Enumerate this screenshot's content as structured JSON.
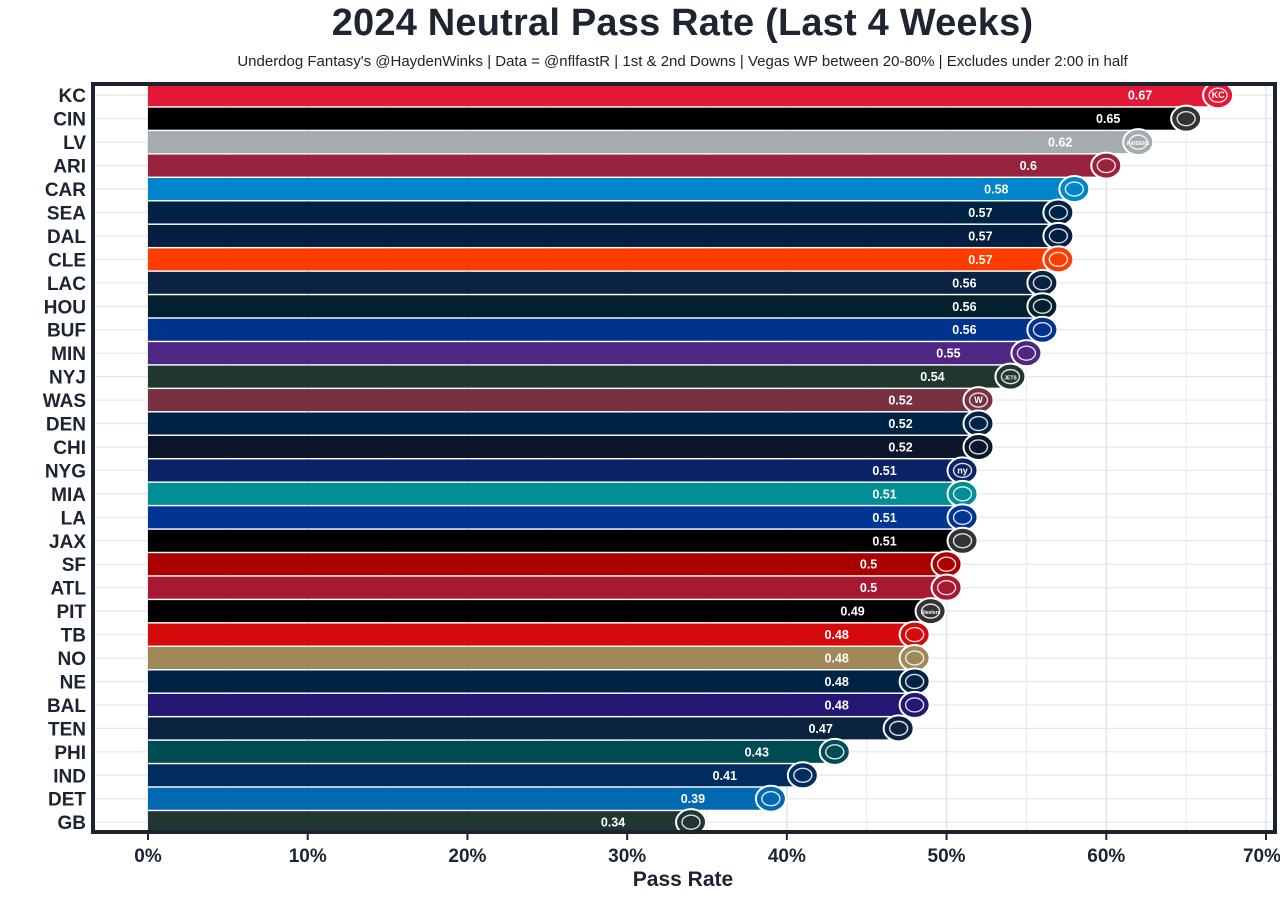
{
  "chart_data": {
    "type": "bar",
    "orientation": "horizontal",
    "title": "2024 Neutral Pass Rate (Last 4 Weeks)",
    "subtitle": "Underdog Fantasy's @HaydenWinks | Data = @nflfastR | 1st & 2nd Downs | Vegas WP between 20-80% | Excludes under 2:00 in half",
    "xlabel": "Pass Rate",
    "ylabel": "",
    "xlim": [
      0,
      0.7
    ],
    "x_ticks": [
      "0%",
      "10%",
      "20%",
      "30%",
      "40%",
      "50%",
      "60%",
      "70%"
    ],
    "grid": true,
    "categories": [
      "KC",
      "CIN",
      "LV",
      "ARI",
      "CAR",
      "SEA",
      "DAL",
      "CLE",
      "LAC",
      "HOU",
      "BUF",
      "MIN",
      "NYJ",
      "WAS",
      "DEN",
      "CHI",
      "NYG",
      "MIA",
      "LA",
      "JAX",
      "SF",
      "ATL",
      "PIT",
      "TB",
      "NO",
      "NE",
      "BAL",
      "TEN",
      "PHI",
      "IND",
      "DET",
      "GB"
    ],
    "values": [
      0.67,
      0.65,
      0.62,
      0.6,
      0.58,
      0.57,
      0.57,
      0.57,
      0.56,
      0.56,
      0.56,
      0.55,
      0.54,
      0.52,
      0.52,
      0.52,
      0.51,
      0.51,
      0.51,
      0.51,
      0.5,
      0.5,
      0.49,
      0.48,
      0.48,
      0.48,
      0.48,
      0.47,
      0.43,
      0.41,
      0.39,
      0.34
    ],
    "data_labels": [
      "0.67",
      "0.65",
      "0.62",
      "0.6",
      "0.58",
      "0.57",
      "0.57",
      "0.57",
      "0.56",
      "0.56",
      "0.56",
      "0.55",
      "0.54",
      "0.52",
      "0.52",
      "0.52",
      "0.51",
      "0.51",
      "0.51",
      "0.51",
      "0.5",
      "0.5",
      "0.49",
      "0.48",
      "0.48",
      "0.48",
      "0.48",
      "0.47",
      "0.43",
      "0.41",
      "0.39",
      "0.34"
    ],
    "bar_colors": [
      "#e31837",
      "#000000",
      "#a5acaf",
      "#97233f",
      "#0085ca",
      "#002244",
      "#041e42",
      "#ff3c00",
      "#0a2342",
      "#03202f",
      "#00338d",
      "#4f2683",
      "#203731",
      "#773141",
      "#002244",
      "#0b162a",
      "#0b2265",
      "#008e97",
      "#003594",
      "#000000",
      "#aa0000",
      "#a71930",
      "#000000",
      "#d50a0a",
      "#9f8958",
      "#002244",
      "#241773",
      "#0c2340",
      "#004c54",
      "#002c5f",
      "#0069b1",
      "#203731"
    ],
    "logos": [
      "kc-logo-icon",
      "cin-logo-icon",
      "lv-logo-icon",
      "ari-logo-icon",
      "car-logo-icon",
      "sea-logo-icon",
      "dal-logo-icon",
      "cle-logo-icon",
      "lac-logo-icon",
      "hou-logo-icon",
      "buf-logo-icon",
      "min-logo-icon",
      "nyj-logo-icon",
      "was-logo-icon",
      "den-logo-icon",
      "chi-logo-icon",
      "nyg-logo-icon",
      "mia-logo-icon",
      "la-logo-icon",
      "jax-logo-icon",
      "sf-logo-icon",
      "atl-logo-icon",
      "pit-logo-icon",
      "tb-logo-icon",
      "no-logo-icon",
      "ne-logo-icon",
      "bal-logo-icon",
      "ten-logo-icon",
      "phi-logo-icon",
      "ind-logo-icon",
      "det-logo-icon",
      "gb-logo-icon"
    ],
    "logo_texts": {
      "KC": "KC",
      "LV": "RAIDERS",
      "WAS": "W",
      "NYG": "ny",
      "NYJ": "JETS",
      "PIT": "Steelers"
    },
    "frame_color": "#1c2331",
    "grid_color": "#e6e6e6"
  }
}
